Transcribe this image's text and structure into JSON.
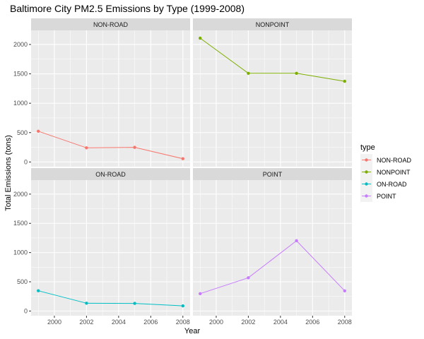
{
  "chart_data": {
    "type": "line",
    "title": "Baltimore City PM2.5 Emissions by Type (1999-2008)",
    "xlabel": "Year",
    "ylabel": "Total Emissions (tons)",
    "x": [
      1999,
      2002,
      2005,
      2008
    ],
    "xticks": [
      "2000",
      "2002",
      "2004",
      "2006",
      "2008"
    ],
    "yticks": [
      "0",
      "500",
      "1000",
      "1500",
      "2000"
    ],
    "xlim": [
      1998.55,
      2008.45
    ],
    "ylim": [
      -80,
      2240
    ],
    "facets": [
      "NON-ROAD",
      "NONPOINT",
      "ON-ROAD",
      "POINT"
    ],
    "grid": true,
    "legend": {
      "title": "type",
      "position": "right"
    },
    "series": [
      {
        "name": "NON-ROAD",
        "color": "#F8766D",
        "values": [
          522.94,
          240.85,
          248.93,
          55.82
        ]
      },
      {
        "name": "NONPOINT",
        "color": "#7CAE00",
        "values": [
          2107.63,
          1509.5,
          1509.5,
          1373.21
        ]
      },
      {
        "name": "ON-ROAD",
        "color": "#00BFC4",
        "values": [
          346.82,
          134.31,
          130.43,
          88.28
        ]
      },
      {
        "name": "POINT",
        "color": "#C77CFF",
        "values": [
          296.8,
          569.26,
          1202.49,
          344.98
        ]
      }
    ]
  }
}
